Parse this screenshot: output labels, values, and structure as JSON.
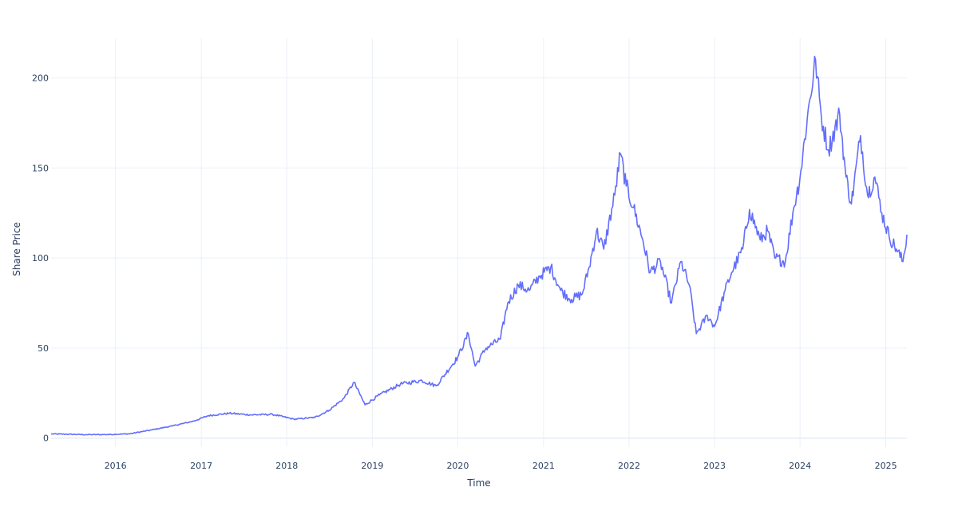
{
  "chart_data": {
    "type": "line",
    "xlabel": "Time",
    "ylabel": "Share Price",
    "grid": true,
    "legend": "none",
    "xlim": [
      "2015-04-01",
      "2025-04-01"
    ],
    "ylim": [
      -5,
      222
    ],
    "x_ticks": [
      "2016",
      "2017",
      "2018",
      "2019",
      "2020",
      "2021",
      "2022",
      "2023",
      "2024",
      "2025"
    ],
    "y_ticks": [
      0,
      50,
      100,
      150,
      200
    ],
    "series": [
      {
        "color": "#636efa",
        "x": [
          "2015-04-01",
          "2015-06-01",
          "2015-09-01",
          "2015-12-01",
          "2016-03-01",
          "2016-06-01",
          "2016-09-01",
          "2016-12-01",
          "2017-02-01",
          "2017-05-01",
          "2017-08-01",
          "2017-11-01",
          "2018-02-01",
          "2018-05-01",
          "2018-07-01",
          "2018-09-01",
          "2018-10-15",
          "2018-12-01",
          "2019-02-01",
          "2019-05-01",
          "2019-08-01",
          "2019-10-01",
          "2020-01-01",
          "2020-02-15",
          "2020-03-15",
          "2020-05-01",
          "2020-07-01",
          "2020-08-01",
          "2020-09-15",
          "2020-11-01",
          "2020-12-15",
          "2021-02-01",
          "2021-03-15",
          "2021-05-01",
          "2021-06-15",
          "2021-07-15",
          "2021-08-15",
          "2021-09-15",
          "2021-11-01",
          "2021-11-25",
          "2021-12-20",
          "2022-01-20",
          "2022-03-01",
          "2022-04-01",
          "2022-05-15",
          "2022-07-01",
          "2022-08-10",
          "2022-09-15",
          "2022-10-15",
          "2022-12-01",
          "2023-01-01",
          "2023-02-15",
          "2023-03-15",
          "2023-05-01",
          "2023-05-30",
          "2023-07-15",
          "2023-08-15",
          "2023-09-15",
          "2023-10-30",
          "2023-12-01",
          "2024-01-01",
          "2024-02-01",
          "2024-03-07",
          "2024-04-01",
          "2024-05-01",
          "2024-06-18",
          "2024-07-15",
          "2024-08-07",
          "2024-09-15",
          "2024-10-15",
          "2024-11-15",
          "2024-12-15",
          "2025-01-15",
          "2025-02-15",
          "2025-03-15",
          "2025-04-01"
        ],
        "y": [
          2.3,
          2.2,
          1.9,
          2.0,
          2.4,
          4.5,
          6.8,
          9.5,
          12.5,
          13.8,
          12.9,
          13.2,
          10.5,
          11.5,
          15.5,
          22,
          31,
          18.5,
          24,
          30,
          32,
          29,
          45,
          58,
          40,
          50,
          55,
          75,
          85,
          82,
          90,
          95,
          82,
          77,
          80,
          95,
          115,
          105,
          135,
          158,
          140,
          128,
          110,
          92,
          98,
          75,
          98,
          85,
          58,
          68,
          62,
          82,
          92,
          105,
          127,
          110,
          115,
          100,
          98,
          125,
          145,
          178,
          210,
          178,
          160,
          180,
          145,
          130,
          168,
          135,
          145,
          125,
          112,
          105,
          98,
          113
        ]
      }
    ]
  }
}
